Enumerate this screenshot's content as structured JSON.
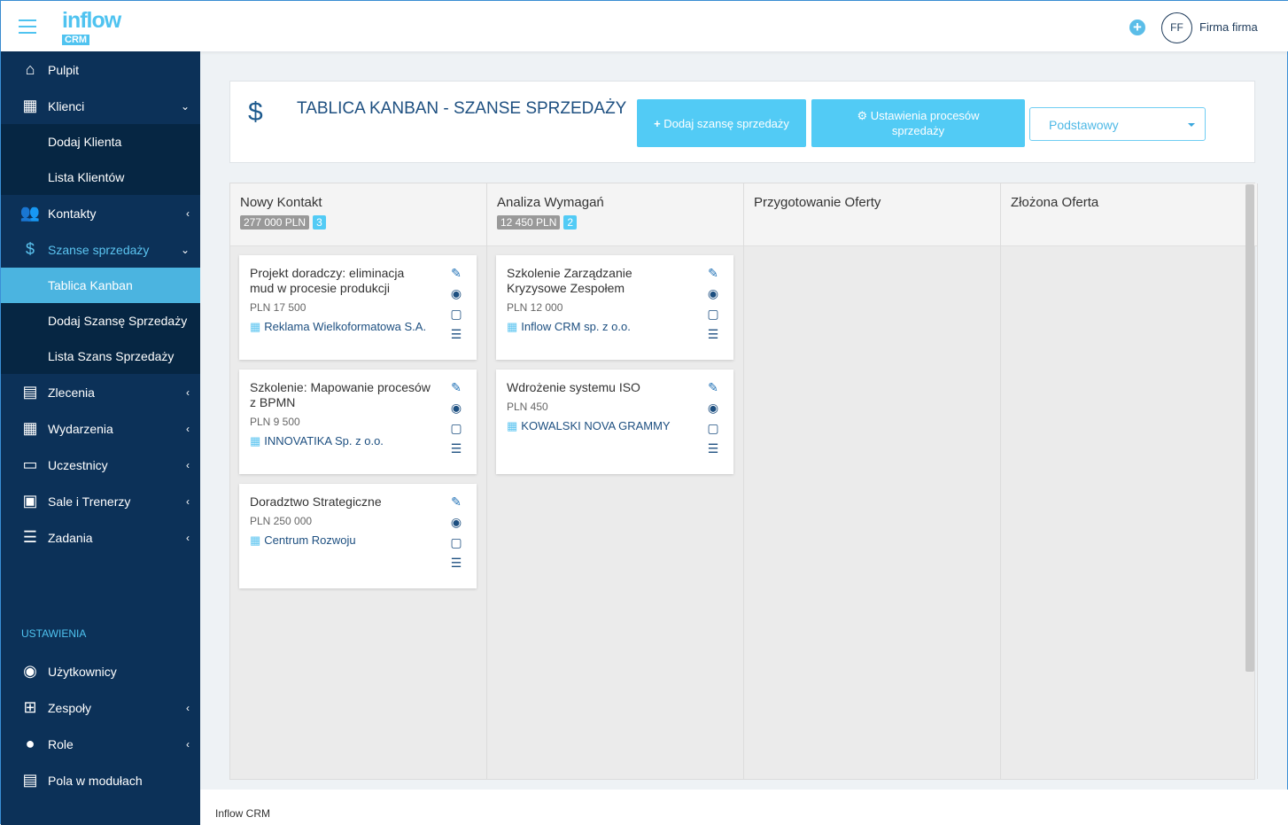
{
  "topbar": {
    "logo_main": "inflow",
    "logo_sub": "CRM",
    "add_icon": "plus-circle-icon",
    "avatar_initials": "FF",
    "user_name": "Firma firma"
  },
  "sidebar": {
    "items": [
      {
        "label": "Pulpit",
        "icon": "home-icon"
      },
      {
        "label": "Klienci",
        "icon": "building-icon",
        "chevron": "down"
      },
      {
        "label": "Dodaj Klienta",
        "sub": true
      },
      {
        "label": "Lista Klientów",
        "sub": true
      },
      {
        "label": "Kontakty",
        "icon": "users-icon",
        "chevron": "left"
      },
      {
        "label": "Szanse sprzedaży",
        "icon": "hand-dollar-icon",
        "chevron": "down",
        "open": true
      },
      {
        "label": "Tablica Kanban",
        "sub": true,
        "active": true
      },
      {
        "label": "Dodaj Szansę Sprzedaży",
        "sub": true
      },
      {
        "label": "Lista Szans Sprzedaży",
        "sub": true
      },
      {
        "label": "Zlecenia",
        "icon": "invoice-icon",
        "chevron": "left"
      },
      {
        "label": "Wydarzenia",
        "icon": "calendar-icon",
        "chevron": "left"
      },
      {
        "label": "Uczestnicy",
        "icon": "id-card-icon",
        "chevron": "left"
      },
      {
        "label": "Sale i Trenerzy",
        "icon": "chalkboard-icon",
        "chevron": "left"
      },
      {
        "label": "Zadania",
        "icon": "tasks-icon",
        "chevron": "left"
      }
    ],
    "settings_heading": "USTAWIENIA",
    "settings_items": [
      {
        "label": "Użytkownicy",
        "icon": "user-circle-icon"
      },
      {
        "label": "Zespoły",
        "icon": "sitemap-icon",
        "chevron": "left"
      },
      {
        "label": "Role",
        "icon": "user-cog-icon",
        "chevron": "left"
      },
      {
        "label": "Pola w modułach",
        "icon": "form-icon"
      }
    ]
  },
  "header": {
    "title": "TABLICA KANBAN - SZANSE SPRZEDAŻY",
    "add_button": "Dodaj szansę sprzedaży",
    "settings_button": "Ustawienia procesów sprzedaży",
    "process_select": "Podstawowy"
  },
  "columns": [
    {
      "name": "Nowy Kontakt",
      "sum": "277 000 PLN",
      "count": "3",
      "cards": [
        {
          "title": "Projekt doradczy: eliminacja mud w procesie produkcji",
          "value": "PLN 17 500",
          "company": "Reklama Wielkoformatowa S.A."
        },
        {
          "title": "Szkolenie: Mapowanie procesów z BPMN",
          "value": "PLN 9 500",
          "company": "INNOVATIKA Sp. z o.o."
        },
        {
          "title": "Doradztwo Strategiczne",
          "value": "PLN 250 000",
          "company": "Centrum Rozwoju"
        }
      ]
    },
    {
      "name": "Analiza Wymagań",
      "sum": "12 450 PLN",
      "count": "2",
      "cards": [
        {
          "title": "Szkolenie Zarządzanie Kryzysowe Zespołem",
          "value": "PLN 12 000",
          "company": "Inflow CRM sp. z o.o."
        },
        {
          "title": "Wdrożenie systemu ISO",
          "value": "PLN 450",
          "company": "KOWALSKI NOVA GRAMMY"
        }
      ]
    },
    {
      "name": "Przygotowanie Oferty",
      "cards": []
    },
    {
      "name": "Złożona Oferta",
      "cards": []
    }
  ],
  "footer": {
    "text": "Inflow CRM"
  }
}
